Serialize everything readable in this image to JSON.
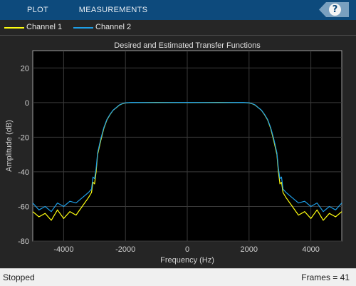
{
  "toolstrip": {
    "tabs": [
      "PLOT",
      "MEASUREMENTS"
    ],
    "help_label": "?"
  },
  "legend": [
    {
      "label": "Channel 1",
      "color": "#ffff11"
    },
    {
      "label": "Channel 2",
      "color": "#1e9ee6"
    }
  ],
  "status": {
    "state": "Stopped",
    "frames": "Frames = 41"
  },
  "chart_data": {
    "type": "line",
    "title": "Desired and Estimated Transfer Functions",
    "xlabel": "Frequency (Hz)",
    "ylabel": "Amplitude (dB)",
    "xlim": [
      -5000,
      5000
    ],
    "ylim": [
      -80,
      30
    ],
    "xticks": [
      -4000,
      -2000,
      0,
      2000,
      4000
    ],
    "yticks": [
      20,
      0,
      -20,
      -40,
      -60,
      -80
    ],
    "grid": true,
    "legend_position": "top",
    "series": [
      {
        "name": "Channel 1",
        "color": "#ffff11",
        "points": [
          [
            -5000,
            -63
          ],
          [
            -4800,
            -66
          ],
          [
            -4600,
            -64
          ],
          [
            -4400,
            -68
          ],
          [
            -4200,
            -62
          ],
          [
            -4000,
            -67
          ],
          [
            -3800,
            -63
          ],
          [
            -3600,
            -65
          ],
          [
            -3400,
            -60
          ],
          [
            -3200,
            -55
          ],
          [
            -3100,
            -52
          ],
          [
            -3050,
            -46
          ],
          [
            -3000,
            -47
          ],
          [
            -2950,
            -40
          ],
          [
            -2900,
            -30
          ],
          [
            -2800,
            -22
          ],
          [
            -2700,
            -15
          ],
          [
            -2600,
            -10
          ],
          [
            -2500,
            -7
          ],
          [
            -2400,
            -4.5
          ],
          [
            -2300,
            -3
          ],
          [
            -2200,
            -1.5
          ],
          [
            -2100,
            -0.7
          ],
          [
            -2000,
            -0.2
          ],
          [
            -1800,
            0
          ],
          [
            -1000,
            0.1
          ],
          [
            0,
            0
          ],
          [
            1000,
            0.1
          ],
          [
            1800,
            0
          ],
          [
            2000,
            -0.2
          ],
          [
            2100,
            -0.7
          ],
          [
            2200,
            -1.5
          ],
          [
            2300,
            -3
          ],
          [
            2400,
            -4.5
          ],
          [
            2500,
            -7
          ],
          [
            2600,
            -10
          ],
          [
            2700,
            -15
          ],
          [
            2800,
            -22
          ],
          [
            2900,
            -30
          ],
          [
            2950,
            -40
          ],
          [
            3000,
            -47
          ],
          [
            3050,
            -46
          ],
          [
            3100,
            -52
          ],
          [
            3200,
            -55
          ],
          [
            3400,
            -60
          ],
          [
            3600,
            -65
          ],
          [
            3800,
            -63
          ],
          [
            4000,
            -67
          ],
          [
            4200,
            -62
          ],
          [
            4400,
            -68
          ],
          [
            4600,
            -64
          ],
          [
            4800,
            -66
          ],
          [
            5000,
            -63
          ]
        ]
      },
      {
        "name": "Channel 2",
        "color": "#1e9ee6",
        "points": [
          [
            -5000,
            -58
          ],
          [
            -4800,
            -62
          ],
          [
            -4600,
            -60
          ],
          [
            -4400,
            -63
          ],
          [
            -4200,
            -58
          ],
          [
            -4000,
            -60
          ],
          [
            -3800,
            -57
          ],
          [
            -3600,
            -58
          ],
          [
            -3400,
            -55
          ],
          [
            -3200,
            -52
          ],
          [
            -3100,
            -50
          ],
          [
            -3050,
            -43
          ],
          [
            -3000,
            -44
          ],
          [
            -2950,
            -38
          ],
          [
            -2900,
            -29
          ],
          [
            -2800,
            -21
          ],
          [
            -2700,
            -14.5
          ],
          [
            -2600,
            -9.7
          ],
          [
            -2500,
            -6.8
          ],
          [
            -2400,
            -4.4
          ],
          [
            -2300,
            -2.9
          ],
          [
            -2200,
            -1.4
          ],
          [
            -2100,
            -0.6
          ],
          [
            -2000,
            -0.1
          ],
          [
            -1800,
            0.1
          ],
          [
            -1000,
            0
          ],
          [
            0,
            0.1
          ],
          [
            1000,
            0
          ],
          [
            1800,
            0.1
          ],
          [
            2000,
            -0.1
          ],
          [
            2100,
            -0.6
          ],
          [
            2200,
            -1.4
          ],
          [
            2300,
            -2.9
          ],
          [
            2400,
            -4.4
          ],
          [
            2500,
            -6.8
          ],
          [
            2600,
            -9.7
          ],
          [
            2700,
            -14.5
          ],
          [
            2800,
            -21
          ],
          [
            2900,
            -29
          ],
          [
            2950,
            -38
          ],
          [
            3000,
            -44
          ],
          [
            3050,
            -43
          ],
          [
            3100,
            -50
          ],
          [
            3200,
            -52
          ],
          [
            3400,
            -55
          ],
          [
            3600,
            -58
          ],
          [
            3800,
            -57
          ],
          [
            4000,
            -60
          ],
          [
            4200,
            -58
          ],
          [
            4400,
            -63
          ],
          [
            4600,
            -60
          ],
          [
            4800,
            -62
          ],
          [
            5000,
            -58
          ]
        ]
      }
    ]
  }
}
